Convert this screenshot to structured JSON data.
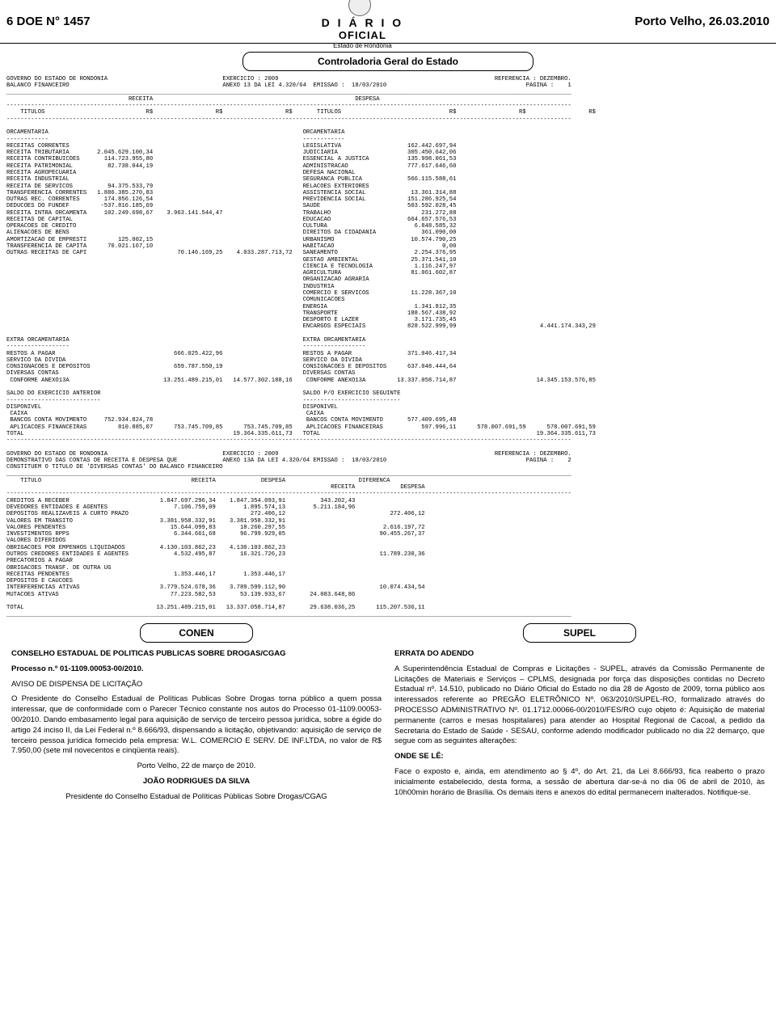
{
  "header": {
    "left": "6    DOE N° 1457",
    "diario": "D I Á R I O",
    "oficial": "OFICIAL",
    "estado": "Estado de Rondônia",
    "right": "Porto Velho, 26.03.2010"
  },
  "controladoria_title": "Controladoria Geral do Estado",
  "balanco_header": {
    "l1a": "GOVERNO DO ESTADO DE RONDONIA",
    "l1b": "EXERCICIO : 2009",
    "l1c": "REFERENCIA : DEZEMBRO.",
    "l2a": "BALANCO FINANCEIRO",
    "l2b": "ANEXO 13 DA LEI 4.320/64  EMISSAO :  18/03/2010",
    "l2c": "PAGINA :    1"
  },
  "col_headers": {
    "receita": "RECEITA",
    "despesa": "DESPESA",
    "titulos": "TITULOS",
    "rs": "R$"
  },
  "orcamentaria_label": "ORCAMENTARIA",
  "dashes12": "------------",
  "receita_rows": [
    [
      "RECEITAS CORRENTES",
      "",
      "",
      ""
    ],
    [
      "RECEITA TRIBUTARIA",
      "2.045.629.100,34",
      "",
      ""
    ],
    [
      "RECEITA CONTRIBUICOES",
      "114.723.955,80",
      "",
      ""
    ],
    [
      "RECEITA PATRIMONIAL",
      "82.738.044,19",
      "",
      ""
    ],
    [
      "RECEITA AGROPECUARIA",
      "",
      "",
      ""
    ],
    [
      "RECEITA INDUSTRIAL",
      "",
      "",
      ""
    ],
    [
      "RECEITA DE SERVICOS",
      "94.375.533,79",
      "",
      ""
    ],
    [
      "TRANSFERENCIA CORRENTES",
      "1.886.385.270,83",
      "",
      ""
    ],
    [
      "OUTRAS REC. CORRENTES",
      "174.856.126,54",
      "",
      ""
    ],
    [
      "DEDUCOES DO FUNDEF",
      "-537.816.185,69",
      "",
      ""
    ],
    [
      "RECEITA INTRA ORCAMENTA",
      "102.249.698,67",
      "3.963.141.544,47",
      ""
    ],
    [
      "RECEITAS DE CAPITAL",
      "",
      "",
      ""
    ],
    [
      "OPERACOES DE CREDITO",
      "",
      "",
      ""
    ],
    [
      "ALIENACOES DE BENS",
      "",
      "",
      ""
    ],
    [
      "AMORTIZACAO DE EMPRESTI",
      "125.002,15",
      "",
      ""
    ],
    [
      "TRANSFERENCIA DE CAPITA",
      "70.021.167,10",
      "",
      ""
    ],
    [
      "OUTRAS RECEITAS DE CAPI",
      "",
      "70.146.169,25",
      "4.033.287.713,72"
    ]
  ],
  "despesa_rows": [
    [
      "LEGISLATIVA",
      "162.442.697,94"
    ],
    [
      "JUDICIARIA",
      "305.450.642,06"
    ],
    [
      "ESSENCIAL A JUSTICA",
      "135.998.061,53"
    ],
    [
      "ADMINISTRACAO",
      "777.617.646,60"
    ],
    [
      "DEFESA NACIONAL",
      ""
    ],
    [
      "SEGURANCA PUBLICA",
      "566.115.588,61"
    ],
    [
      "RELACOES EXTERIORES",
      ""
    ],
    [
      "ASSISTENCIA SOCIAL",
      "13.361.314,88"
    ],
    [
      "PREVIDENCIA SOCIAL",
      "151.286.925,54"
    ],
    [
      "SAUDE",
      "503.592.028,45"
    ],
    [
      "TRABALHO",
      "231.272,88"
    ],
    [
      "EDUCACAO",
      "664.657.576,53"
    ],
    [
      "CULTURA",
      "6.848.585,32"
    ],
    [
      "DIREITOS DA CIDADANIA",
      "361.090,00"
    ],
    [
      "URBANISMO",
      "10.574.790,25"
    ],
    [
      "HABITACAO",
      "0,00"
    ],
    [
      "SANEAMENTO",
      "2.254.376,95"
    ],
    [
      "GESTAO AMBIENTAL",
      "25.371.541,10"
    ],
    [
      "CIENCIA E TECNOLOGIA",
      "1.116.247,97"
    ],
    [
      "AGRICULTURA",
      "81.061.602,87"
    ],
    [
      "ORGANIZACAO AGRARIA",
      ""
    ],
    [
      "INDUSTRIA",
      ""
    ],
    [
      "COMERCIO E SERVICOS",
      "11.228.367,10"
    ],
    [
      "COMUNICACOES",
      ""
    ],
    [
      "ENERGIA",
      "1.341.812,35"
    ],
    [
      "TRANSPORTE",
      "188.567.438,92"
    ],
    [
      "DESPORTO E LAZER",
      "3.171.735,45"
    ],
    [
      "ENCARGOS ESPECIAIS",
      "828.522.999,99"
    ]
  ],
  "despesa_total": "4.441.174.343,29",
  "extra_label": "EXTRA ORCAMENTARIA",
  "dashes18": "------------------",
  "extra_receita": [
    [
      "RESTOS A PAGAR",
      "",
      "666.025.422,96",
      ""
    ],
    [
      "SERVICO DA DIVIDA",
      "",
      "",
      ""
    ],
    [
      "CONSIGNACOES E DEPOSITOS",
      "",
      "659.787.550,19",
      ""
    ],
    [
      "DIVERSAS CONTAS",
      "",
      "",
      ""
    ],
    [
      " CONFORME ANEXO13A",
      "",
      "13.251.489.215,01",
      "14.577.302.188,16"
    ]
  ],
  "extra_despesa": [
    [
      "RESTOS A PAGAR",
      "371.046.417,34",
      ""
    ],
    [
      "SERVICO DA DIVIDA",
      "",
      ""
    ],
    [
      "CONSIGNACOES E DEPOSITOS",
      "637.048.444,64",
      ""
    ],
    [
      "DIVERSAS CONTAS",
      "",
      ""
    ],
    [
      " CONFORME ANEXO13A",
      "13.337.058.714,87",
      "14.345.153.576,85"
    ]
  ],
  "saldo_anterior_label": "SALDO DO EXERCICIO ANTERIOR",
  "saldo_seguinte_label": "SALDO P/O EXERCICIO SEGUINTE",
  "dashes27": "---------------------------",
  "dashes28": "----------------------------",
  "disponivel_label": "DISPONIVEL",
  "caixa_label": " CAIXA",
  "saldo_receita": [
    [
      " BANCOS CONTA MOVIMENTO",
      "752.934.824,78",
      "",
      ""
    ],
    [
      " APLICACOES FINANCEIRAS",
      "810.885,07",
      "753.745.709,85",
      "753.745.709,85"
    ]
  ],
  "saldo_despesa": [
    [
      " BANCOS CONTA MOVIMENTO",
      "577.409.695,48",
      "",
      ""
    ],
    [
      " APLICACOES FINANCEIRAS",
      "597.996,11",
      "578.007.691,59",
      "578.007.691,59"
    ]
  ],
  "total_label": "TOTAL",
  "total_receita": "19.364.335.611,73",
  "total_despesa": "19.364.335.611,73",
  "demo_header": {
    "l1a": "GOVERNO DO ESTADO DE RONDONIA",
    "l1b": "EXERCICIO : 2009",
    "l1c": "REFERENCIA : DEZEMBRO.",
    "l2a": "DEMONSTRATIVO DAS CONTAS DE RECEITA E DESPESA QUE",
    "l2b": "ANEXO 13A DA LEI 4.320/64 EMISSAO :  18/03/2010",
    "l2c": "PAGINA :    2",
    "l3": "CONSTITUEM O TITULO DE 'DIVERSAS CONTAS' DO BALANCO FINANCEIRO"
  },
  "demo_cols": {
    "titulo": "TITULO",
    "receita": "RECEITA",
    "despesa": "DESPESA",
    "diferenca": "DIFERENCA"
  },
  "demo_rows": [
    [
      "CREDITOS A RECEBER",
      "1.847.697.296,34",
      "1.847.354.093,91",
      "343.202,43",
      ""
    ],
    [
      "DEVEDORES ENTIDADES E AGENTES",
      "7.106.759,09",
      "1.895.574,13",
      "5.211.184,96",
      ""
    ],
    [
      "DEPOSITOS REALIZAVEIS A CURTO PRAZO",
      "",
      "272.406,12",
      "",
      "272.406,12"
    ],
    [
      "VALORES EM TRANSITO",
      "3.381.958.332,91",
      "3.381.958.332,91",
      "",
      ""
    ],
    [
      "VALORES PENDENTES",
      "15.644.099,83",
      "18.260.297,55",
      "",
      "2.616.197,72"
    ],
    [
      "INVESTIMENTOS RPPS",
      "6.344.661,68",
      "96.799.929,05",
      "",
      "90.455.267,37"
    ],
    [
      "VALORES DIFERIDOS",
      "",
      "",
      "",
      ""
    ],
    [
      "OBRIGACOES POR EMPENHOS LIQUIDADOS",
      "4.130.103.862,23",
      "4.130.103.862,23",
      "",
      ""
    ],
    [
      "OUTROS CREDORES ENTIDADES E AGENTES",
      "4.532.495,87",
      "16.321.726,23",
      "",
      "11.789.230,36"
    ],
    [
      "PRECATORIOS A PAGAR",
      "",
      "",
      "",
      ""
    ],
    [
      "OBRIGACOES TRANSF. DE OUTRA UG",
      "",
      "",
      "",
      ""
    ],
    [
      "RECEITAS PENDENTES",
      "1.353.446,17",
      "1.353.446,17",
      "",
      ""
    ],
    [
      "DEPOSITOS E CAUCOES",
      "",
      "",
      "",
      ""
    ],
    [
      "INTERFERENCIAS ATIVAS",
      "3.779.524.678,36",
      "3.789.599.112,90",
      "",
      "10.074.434,54"
    ],
    [
      "MUTACOES ATIVAS",
      "77.223.582,53",
      "53.139.933,67",
      "24.083.648,86",
      ""
    ]
  ],
  "demo_total": [
    "TOTAL",
    "13.251.489.215,01",
    "13.337.058.714,87",
    "29.638.036,25",
    "115.207.536,11"
  ],
  "conen": {
    "box": "CONEN",
    "title": "CONSELHO ESTADUAL DE POLITICAS PUBLICAS SOBRE DROGAS/CGAG",
    "proc": "Processo n.º 01-1109.00053-00/2010.",
    "aviso": "AVISO DE DISPENSA DE LICITAÇÃO",
    "body": "O Presidente do Conselho Estadual de Políticas Publicas Sobre Drogas torna público a quem possa interessar, que de conformidade com o Parecer Técnico constante nos autos do Processo 01-1109.00053-00/2010. Dando embasamento legal para aquisição de serviço de terceiro pessoa jurídica, sobre a égide do artigo 24 inciso II, da Lei Federal n.º 8.666/93, dispensando a licitação, objetivando: aquisição de serviço de terceiro pessoa jurídica fornecido pela empresa: W.L. COMERCIO E SERV. DE INF.LTDA, no valor de R$ 7.950,00 (sete mil novecentos e cinqüenta reais).",
    "local": "Porto Velho, 22 de março de 2010.",
    "nome": "JOÃO RODRIGUES DA SILVA",
    "cargo": "Presidente do Conselho Estadual de Políticas Públicas Sobre Drogas/CGAG"
  },
  "supel": {
    "box": "SUPEL",
    "title": "ERRATA DO ADENDO",
    "body": "A Superintendência Estadual de Compras e Licitações - SUPEL, através da Comissão Permanente de Licitações de Materiais e Serviços – CPLMS, designada por força das disposições contidas no Decreto Estadual nº. 14.510, publicado no Diário Oficial do Estado no dia 28 de Agosto de 2009, torna público aos interessados referente ao PREGÃO ELETRÔNICO Nº. 063/2010/SUPEL-RO, formalizado através do PROCESSO ADMINISTRATIVO Nº. 01.1712.00066-00/2010/FES/RO cujo objeto é: Aquisição de material permanente (carros e mesas hospitalares) para atender ao Hospital Regional de Cacoal, a pedido da Secretaria do Estado de Saúde - SESAU, conforme adendo modificador publicado no dia 22 demarço, que segue com as seguintes alterações:",
    "onde": "ONDE SE LÊ:",
    "body2": "Face o exposto e, ainda, em atendimento ao § 4º, do Art. 21, da Lei 8.666/93, fica reaberto o prazo inicialmente estabelecido, desta forma, a sessão de abertura dar-se-á no dia 06 de abril de 2010, às 10h00min horário de Brasília. Os demais itens e anexos do edital permanecem inalterados. Notifique-se."
  }
}
